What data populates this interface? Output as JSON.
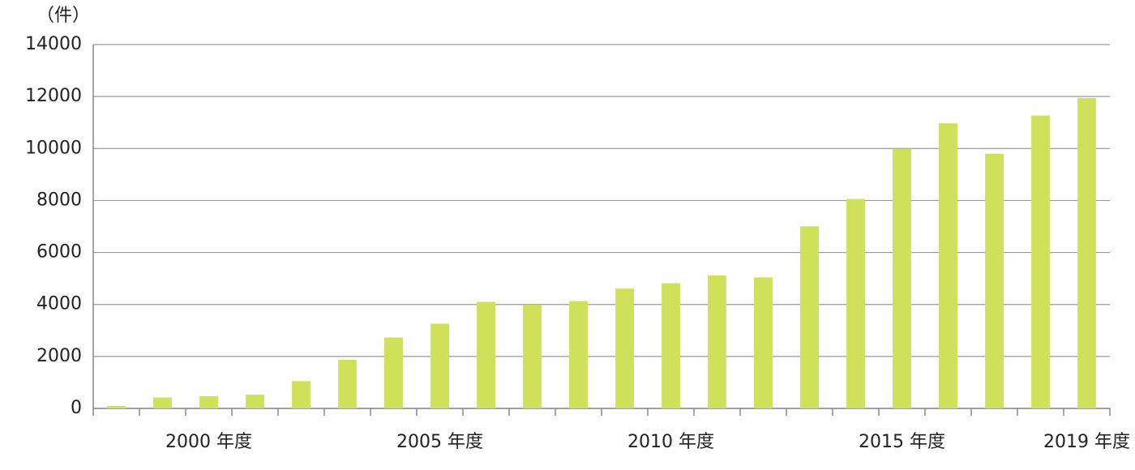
{
  "chart_data": {
    "type": "bar",
    "unit_label": "（件）",
    "categories": [
      null,
      null,
      "2000 年度",
      null,
      null,
      null,
      null,
      "2005 年度",
      null,
      null,
      null,
      null,
      "2010 年度",
      null,
      null,
      null,
      null,
      "2015 年度",
      null,
      null,
      null,
      "2019 年度"
    ],
    "values": [
      100,
      420,
      470,
      530,
      1050,
      1870,
      2730,
      3260,
      4100,
      3990,
      4130,
      4610,
      4820,
      5120,
      5040,
      7010,
      8060,
      9990,
      10970,
      9800,
      11270,
      11940
    ],
    "color": "#cfe05a",
    "ylim": [
      0,
      14000
    ],
    "yticks": [
      0,
      2000,
      4000,
      6000,
      8000,
      10000,
      12000,
      14000
    ],
    "grid": true
  }
}
